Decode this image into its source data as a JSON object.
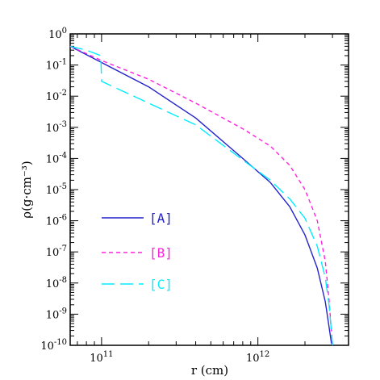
{
  "chart_data": {
    "type": "line",
    "xlabel": "r (cm)",
    "ylabel": "ρ(g·cm⁻³)",
    "xscale": "log",
    "yscale": "log",
    "xlim": [
      63000000000.0,
      3800000000000.0
    ],
    "ylim": [
      1e-10,
      1
    ],
    "x_tick_labels": [
      {
        "value": 100000000000.0,
        "base": "10",
        "exp": "11"
      },
      {
        "value": 1000000000000.0,
        "base": "10",
        "exp": "12"
      }
    ],
    "y_tick_labels": [
      {
        "value": 1,
        "base": "10",
        "exp": "0"
      },
      {
        "value": 0.1,
        "base": "10",
        "exp": "-1"
      },
      {
        "value": 0.01,
        "base": "10",
        "exp": "-2"
      },
      {
        "value": 0.001,
        "base": "10",
        "exp": "-3"
      },
      {
        "value": 0.0001,
        "base": "10",
        "exp": "-4"
      },
      {
        "value": 1e-05,
        "base": "10",
        "exp": "-5"
      },
      {
        "value": 1e-06,
        "base": "10",
        "exp": "-6"
      },
      {
        "value": 1e-07,
        "base": "10",
        "exp": "-7"
      },
      {
        "value": 1e-08,
        "base": "10",
        "exp": "-8"
      },
      {
        "value": 1e-09,
        "base": "10",
        "exp": "-9"
      },
      {
        "value": 1e-10,
        "base": "10",
        "exp": "-10"
      }
    ],
    "legend_placement": "lower-left",
    "series": [
      {
        "name": "[A]",
        "color": "#2222cc",
        "style": "solid",
        "x": [
          63000000000.0,
          100000000000.0,
          200000000000.0,
          400000000000.0,
          800000000000.0,
          1200000000000.0,
          1600000000000.0,
          2000000000000.0,
          2400000000000.0,
          2700000000000.0,
          2850000000000.0,
          2950000000000.0,
          3000000000000.0
        ],
        "y": [
          0.4,
          0.12,
          0.02,
          0.002,
          0.0001,
          1.7e-05,
          2.8e-06,
          3.5e-07,
          3e-08,
          2.5e-09,
          4e-10,
          1.2e-10,
          1e-10
        ]
      },
      {
        "name": "[B]",
        "color": "#ff22dd",
        "style": "dashed",
        "x": [
          63000000000.0,
          100000000000.0,
          200000000000.0,
          400000000000.0,
          800000000000.0,
          1200000000000.0,
          1600000000000.0,
          2000000000000.0,
          2400000000000.0,
          2700000000000.0,
          2850000000000.0,
          2950000000000.0,
          3000000000000.0
        ],
        "y": [
          0.4,
          0.14,
          0.035,
          0.006,
          0.0009,
          0.00025,
          6e-05,
          1e-05,
          1e-06,
          5e-08,
          3e-09,
          3e-10,
          1e-10
        ]
      },
      {
        "name": "[C]",
        "color": "#00eeff",
        "style": "long-dash",
        "x": [
          63000000000.0,
          80000000000.0,
          99000000000.0,
          100000000000.0,
          200000000000.0,
          400000000000.0,
          800000000000.0,
          1200000000000.0,
          1600000000000.0,
          2000000000000.0,
          2400000000000.0,
          2700000000000.0,
          2850000000000.0,
          2950000000000.0,
          3000000000000.0
        ],
        "y": [
          0.4,
          0.3,
          0.2,
          0.03,
          0.006,
          0.0012,
          9e-05,
          2e-05,
          5e-06,
          1.2e-06,
          1.5e-07,
          1.5e-08,
          2e-09,
          3e-10,
          1e-10
        ]
      }
    ]
  }
}
